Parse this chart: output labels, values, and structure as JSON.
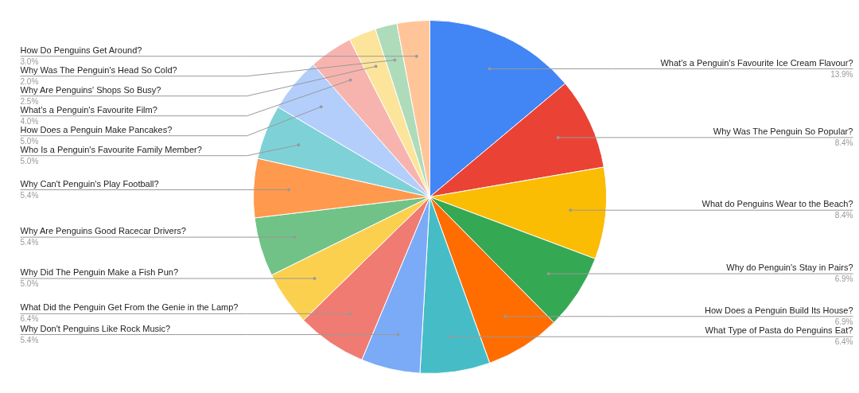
{
  "chart_data": {
    "type": "pie",
    "categories": [
      "What's a Penguin's Favourite Ice Cream Flavour?",
      "Why Was The Penguin So Popular?",
      "What do Penguins Wear to the Beach?",
      "Why do Penguin's Stay in Pairs?",
      "How Does a Penguin Build Its House?",
      "What Type of Pasta do Penguins Eat?",
      "Why Don't Penguins Like Rock Music?",
      "What Did the Penguin Get From the Genie in the Lamp?",
      "Why Did The Penguin Make a Fish Pun?",
      "Why Are Penguins Good Racecar Drivers?",
      "Why Can't Penguin's Play Football?",
      "Who Is a Penguin's Favourite Family Member?",
      "How Does a Penguin Make Pancakes?",
      "What's a Penguin's Favourite Film?",
      "Why Are Penguins' Shops So Busy?",
      "Why Was The Penguin's Head So Cold?",
      "How Do Penguins Get Around?"
    ],
    "values": [
      13.9,
      8.4,
      8.4,
      6.9,
      6.9,
      6.4,
      5.4,
      6.4,
      5.0,
      5.4,
      5.4,
      5.0,
      5.0,
      4.0,
      2.5,
      2.0,
      3.0
    ],
    "value_labels": [
      "13.9%",
      "8.4%",
      "8.4%",
      "6.9%",
      "6.9%",
      "6.4%",
      "5.4%",
      "6.4%",
      "5.0%",
      "5.4%",
      "5.4%",
      "5.0%",
      "5.0%",
      "4.0%",
      "2.5%",
      "2.0%",
      "3.0%"
    ],
    "colors": [
      "#4285f4",
      "#ea4335",
      "#fbbc04",
      "#34a853",
      "#ff6d01",
      "#46bdc6",
      "#7baaf7",
      "#f07b72",
      "#fcd04f",
      "#71c287",
      "#ff994d",
      "#7ed1d7",
      "#b3cefb",
      "#f7b4ae",
      "#fde49b",
      "#aedcba",
      "#ffc599"
    ]
  }
}
